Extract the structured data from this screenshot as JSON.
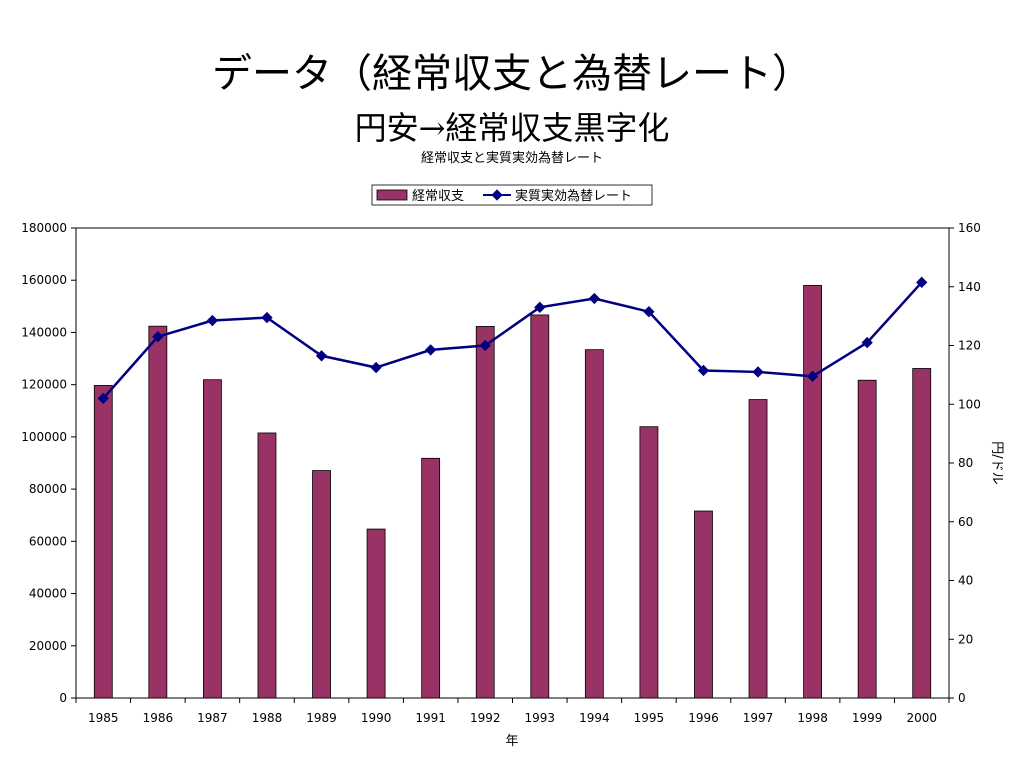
{
  "slide": {
    "title": "データ（経常収支と為替レート）",
    "subtitle": "円安→経常収支黒字化"
  },
  "chart_data": {
    "type": "bar",
    "title": "経常収支と実質実効為替レート",
    "categories": [
      "1985",
      "1986",
      "1987",
      "1988",
      "1989",
      "1990",
      "1991",
      "1992",
      "1993",
      "1994",
      "1995",
      "1996",
      "1997",
      "1998",
      "1999",
      "2000"
    ],
    "series": [
      {
        "name": "経常収支",
        "type": "bar",
        "axis": "left",
        "color": "#993366",
        "values": [
          119700,
          142400,
          121900,
          101500,
          87100,
          64700,
          91800,
          142300,
          146700,
          133400,
          103900,
          71600,
          114300,
          158000,
          121700,
          126200
        ]
      },
      {
        "name": "実質実効為替レート",
        "type": "line",
        "axis": "right",
        "color": "#000080",
        "values": [
          102,
          123,
          128.5,
          129.5,
          116.5,
          112.5,
          118.5,
          120,
          133,
          136,
          131.5,
          111.5,
          111,
          109.5,
          121,
          141.5
        ]
      }
    ],
    "xlabel": "年",
    "ylabel": "",
    "y2label": "円/ドル",
    "ylim": [
      0,
      180000
    ],
    "yticks": [
      "0",
      "20000",
      "40000",
      "60000",
      "80000",
      "100000",
      "120000",
      "140000",
      "160000",
      "180000"
    ],
    "y2lim": [
      0,
      160
    ],
    "y2ticks": [
      "0",
      "20",
      "40",
      "60",
      "80",
      "100",
      "120",
      "140",
      "160"
    ],
    "legend": "top-center",
    "grid": false
  }
}
